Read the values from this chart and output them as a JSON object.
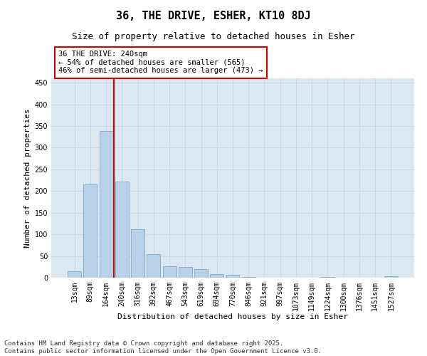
{
  "title": "36, THE DRIVE, ESHER, KT10 8DJ",
  "subtitle": "Size of property relative to detached houses in Esher",
  "xlabel": "Distribution of detached houses by size in Esher",
  "ylabel": "Number of detached properties",
  "categories": [
    "13sqm",
    "89sqm",
    "164sqm",
    "240sqm",
    "316sqm",
    "392sqm",
    "467sqm",
    "543sqm",
    "619sqm",
    "694sqm",
    "770sqm",
    "846sqm",
    "921sqm",
    "997sqm",
    "1073sqm",
    "1149sqm",
    "1224sqm",
    "1300sqm",
    "1376sqm",
    "1451sqm",
    "1527sqm"
  ],
  "values": [
    15,
    215,
    338,
    222,
    112,
    54,
    26,
    25,
    20,
    8,
    6,
    1,
    0,
    0,
    0,
    0,
    1,
    0,
    0,
    0,
    3
  ],
  "bar_color": "#b8d0e8",
  "bar_edge_color": "#7aaac8",
  "vline_x": 2.5,
  "vline_color": "#cc0000",
  "annotation_text": "36 THE DRIVE: 240sqm\n← 54% of detached houses are smaller (565)\n46% of semi-detached houses are larger (473) →",
  "annotation_box_color": "#ffffff",
  "annotation_box_edge": "#cc0000",
  "ylim": [
    0,
    460
  ],
  "yticks": [
    0,
    50,
    100,
    150,
    200,
    250,
    300,
    350,
    400,
    450
  ],
  "grid_color": "#c8d8e8",
  "background_color": "#dce8f0",
  "footer": "Contains HM Land Registry data © Crown copyright and database right 2025.\nContains public sector information licensed under the Open Government Licence v3.0.",
  "title_fontsize": 11,
  "subtitle_fontsize": 9,
  "axis_label_fontsize": 8,
  "tick_fontsize": 7,
  "annotation_fontsize": 7.5,
  "footer_fontsize": 6.5
}
